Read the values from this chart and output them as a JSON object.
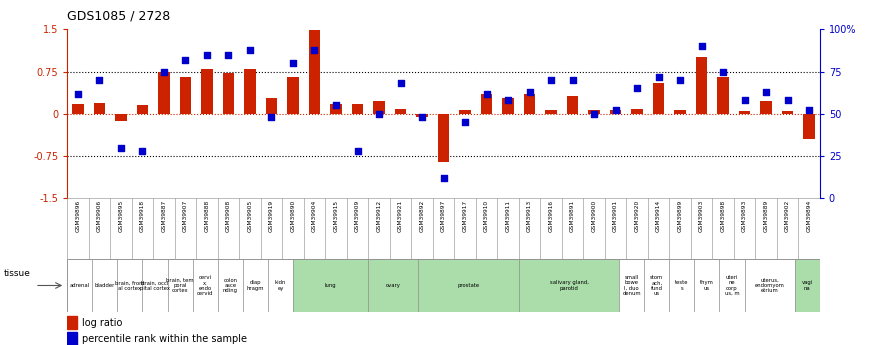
{
  "title": "GDS1085 / 2728",
  "samples": [
    "GSM39896",
    "GSM39906",
    "GSM39895",
    "GSM39918",
    "GSM39887",
    "GSM39907",
    "GSM39888",
    "GSM39908",
    "GSM39905",
    "GSM39919",
    "GSM39890",
    "GSM39904",
    "GSM39915",
    "GSM39909",
    "GSM39912",
    "GSM39921",
    "GSM39892",
    "GSM39897",
    "GSM39917",
    "GSM39910",
    "GSM39911",
    "GSM39913",
    "GSM39916",
    "GSM39891",
    "GSM39900",
    "GSM39901",
    "GSM39920",
    "GSM39914",
    "GSM39899",
    "GSM39903",
    "GSM39898",
    "GSM39893",
    "GSM39889",
    "GSM39902",
    "GSM39894"
  ],
  "log_ratio": [
    0.18,
    0.2,
    -0.12,
    0.15,
    0.75,
    0.65,
    0.8,
    0.72,
    0.8,
    0.28,
    0.65,
    1.48,
    0.18,
    0.18,
    0.22,
    0.08,
    -0.05,
    -0.85,
    0.07,
    0.35,
    0.28,
    0.35,
    0.07,
    0.32,
    0.06,
    0.07,
    0.08,
    0.55,
    0.06,
    1.0,
    0.65,
    0.05,
    0.22,
    0.05,
    -0.45
  ],
  "percentile_rank": [
    62,
    70,
    30,
    28,
    75,
    82,
    85,
    85,
    88,
    48,
    80,
    88,
    55,
    28,
    50,
    68,
    48,
    12,
    45,
    62,
    58,
    63,
    70,
    70,
    50,
    52,
    65,
    72,
    70,
    90,
    75,
    58,
    63,
    58,
    52
  ],
  "tissue_groups": [
    {
      "label": "adrenal",
      "start": 0,
      "end": 1,
      "color": "#ffffff"
    },
    {
      "label": "bladder",
      "start": 1,
      "end": 2,
      "color": "#ffffff"
    },
    {
      "label": "brain, front\nal cortex",
      "start": 2,
      "end": 3,
      "color": "#ffffff"
    },
    {
      "label": "brain, occi\npital cortex",
      "start": 3,
      "end": 4,
      "color": "#ffffff"
    },
    {
      "label": "brain, tem\nporal\ncortex",
      "start": 4,
      "end": 5,
      "color": "#ffffff"
    },
    {
      "label": "cervi\nx,\nendo\ncervid",
      "start": 5,
      "end": 6,
      "color": "#ffffff"
    },
    {
      "label": "colon\nasce\nnding",
      "start": 6,
      "end": 7,
      "color": "#ffffff"
    },
    {
      "label": "diap\nhragm",
      "start": 7,
      "end": 8,
      "color": "#ffffff"
    },
    {
      "label": "kidn\ney",
      "start": 8,
      "end": 9,
      "color": "#ffffff"
    },
    {
      "label": "lung",
      "start": 9,
      "end": 12,
      "color": "#aaddaa"
    },
    {
      "label": "ovary",
      "start": 12,
      "end": 14,
      "color": "#aaddaa"
    },
    {
      "label": "prostate",
      "start": 14,
      "end": 18,
      "color": "#aaddaa"
    },
    {
      "label": "salivary gland,\nparotid",
      "start": 18,
      "end": 22,
      "color": "#aaddaa"
    },
    {
      "label": "small\nbowe\nl, duo\ndenum",
      "start": 22,
      "end": 23,
      "color": "#ffffff"
    },
    {
      "label": "stom\nach,\nfund\nus",
      "start": 23,
      "end": 24,
      "color": "#ffffff"
    },
    {
      "label": "teste\ns",
      "start": 24,
      "end": 25,
      "color": "#ffffff"
    },
    {
      "label": "thym\nus",
      "start": 25,
      "end": 26,
      "color": "#ffffff"
    },
    {
      "label": "uteri\nne\ncorp\nus, m",
      "start": 26,
      "end": 27,
      "color": "#ffffff"
    },
    {
      "label": "uterus,\nendomyom\netrium",
      "start": 27,
      "end": 29,
      "color": "#ffffff"
    },
    {
      "label": "vagi\nna",
      "start": 29,
      "end": 30,
      "color": "#aaddaa"
    }
  ],
  "n_tissue_cols": 30,
  "bar_color": "#cc2200",
  "dot_color": "#0000cc",
  "ylim": [
    -1.5,
    1.5
  ],
  "y2lim": [
    0,
    100
  ],
  "yticks": [
    -1.5,
    -0.75,
    0.0,
    0.75,
    1.5
  ],
  "y2ticks": [
    0,
    25,
    50,
    75,
    100
  ],
  "hline_dotted": [
    0.75,
    -0.75
  ],
  "hline_red_dotted": 0.0
}
